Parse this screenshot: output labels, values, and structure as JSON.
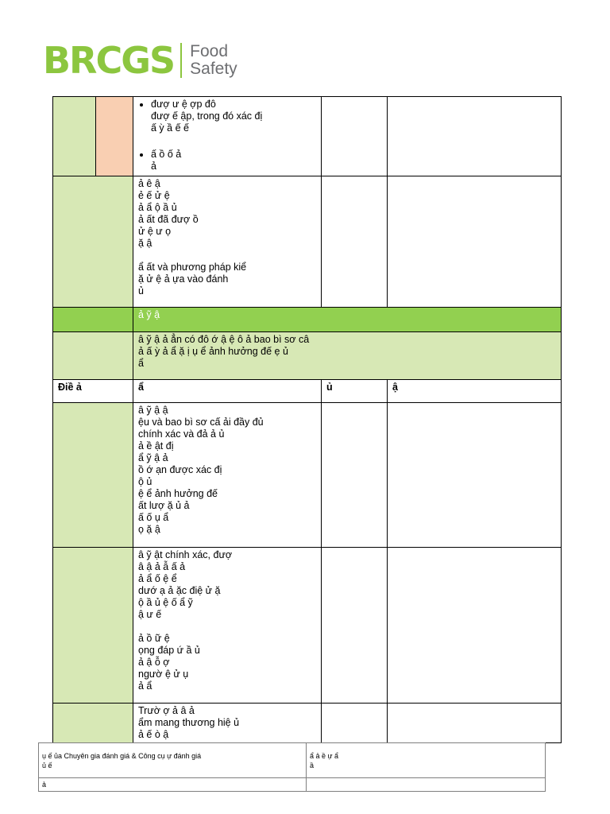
{
  "logo": {
    "brand": "BRCGS",
    "line1": "Food",
    "line2": "Safety"
  },
  "rows": {
    "r1_bullets": [
      "đượ    ư    ệ                ợp đô\nđượ      ế    ập, trong đó xác đị\n                ấ    ỳ          ầ        ế     ế",
      "                      ấ        ồ        ố       ả\n        ả"
    ],
    "r2_text": "                ả    ê   ậ\n ẻ                ế            ử       ệ\nả       ẩ            ộ       ầ     ủ\nả      ất đã đượ                           ồ\n ử      ệ       ư                     ọ\n        ặ                 ậ\n\n ẩ      ất và phương pháp kiể\n  ặ      ử          ệ         ả    ựa vào đánh\n      ủ",
    "band_text": "          ả      ỹ      ậ",
    "intro_text": "               â    ỹ      ậ       ả    ẳn có đô    ớ                 ậ    ệ             ô     ả bao bì sơ câ\n ả             ấ    ỳ  ả       ẩ        ặ    ị       ụ               ể ảnh hưởng đế                  ẹ     ủ\nẩ",
    "header_col1": "Điề        ả",
    "header_col2": "                    ẩ",
    "header_col3": "                      ủ",
    "header_col4": "               ậ",
    "r3_text": "                 â     ỹ      ậ                            ậ\n ệu và bao bì sơ cấ      ải đầy đủ\nchính xác và đả        ả                ủ\n        ả      ề                     ật đị\n                    ẩ      ỹ      ậ       ả\n ồ              ớ     ạn được xác đị\n             ộ                              ủ\n                 ệ          ể ảnh hưởng đế\n  ất lượ            ặ                  ủ           ả\n  ấ           ố                  ụ                ẩ\nọ                      ặ     ậ",
    "r4_text": "                 â     ỹ      ật chính xác, đượ\n  â      ậ       ả    ẫ              ấ         ả\n ả       ẩ           ố                  ệ                    ể\ndướ    ạ         ả            ặc điệ     ử      ặ\n  ộ        ầ       ủ     ệ      ố                   ẩ     ỹ\n    ậ     ư         ế\n\n                 ả           ồ         ữ   ệ\n ọng đáp ứ                           ầ        ủ\n                 ả        ậ                   ỗ      ợ\nngườ                          ệ       ử     ụ\n  ả        ẩ",
    "r5_text": "Trườ        ợ                         ả          â            ả\n  ẩm mang thương hiệ        ủ\n                             ả           ế          ò       ậ"
  },
  "footer": {
    "left_top": "ụ     ế          ủa Chuyên gia đánh giá & Công cụ    ự đánh giá\nủ               ế",
    "right_top": "ẩ              ả          ề                       ự             ẩ\n                                                                                  ầ",
    "left_bottom": "ả",
    "right_bottom": ""
  },
  "colors": {
    "brand_green": "#8cc63f",
    "light_green": "#d7e8b5",
    "band_green": "#92d050",
    "peach": "#f9cfb2"
  }
}
